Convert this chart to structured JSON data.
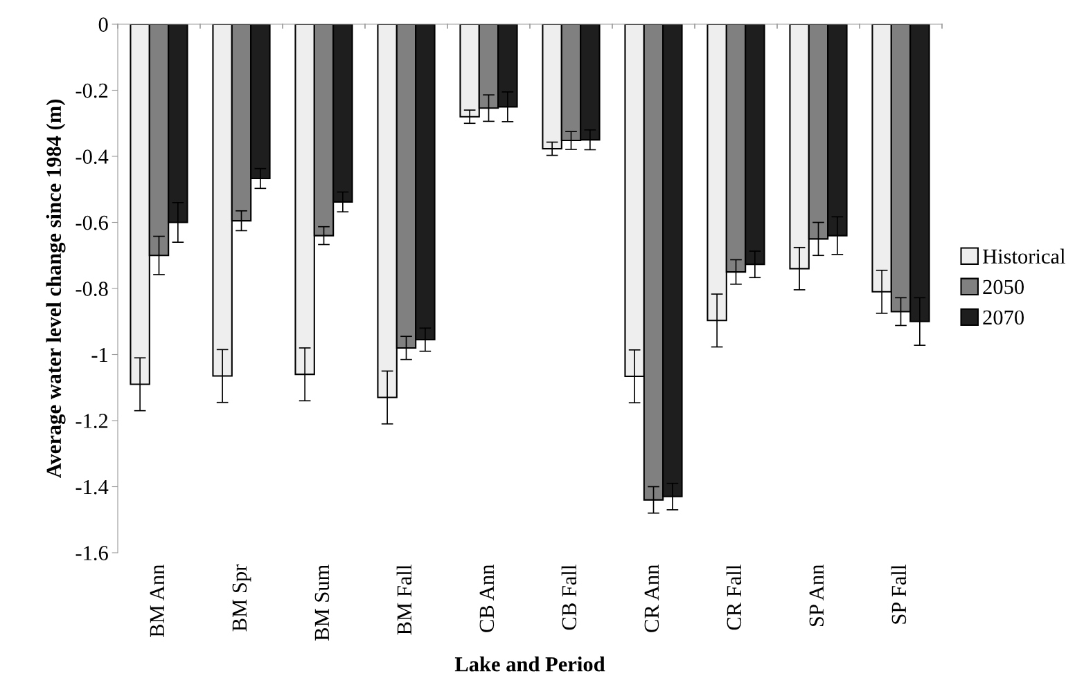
{
  "chart_data": {
    "type": "bar",
    "xlabel": "Lake and Period",
    "ylabel": "Average water level change since 1984 (m)",
    "categories": [
      "BM Ann",
      "BM Spr",
      "BM Sum",
      "BM Fall",
      "CB Ann",
      "CB Fall",
      "CR Ann",
      "CR Fall",
      "SP Ann",
      "SP Fall"
    ],
    "series": [
      {
        "name": "Historical",
        "color": "#eeeeee",
        "values": [
          -1.09,
          -1.065,
          -1.06,
          -1.13,
          -0.28,
          -0.377,
          -1.066,
          -0.897,
          -0.74,
          -0.81
        ],
        "errors": [
          0.08,
          0.08,
          0.08,
          0.08,
          0.02,
          0.02,
          0.08,
          0.08,
          0.064,
          0.065
        ]
      },
      {
        "name": "2050",
        "color": "#808080",
        "values": [
          -0.7,
          -0.595,
          -0.64,
          -0.98,
          -0.254,
          -0.352,
          -1.44,
          -0.75,
          -0.65,
          -0.87
        ],
        "errors": [
          0.058,
          0.03,
          0.027,
          0.035,
          0.04,
          0.027,
          0.04,
          0.037,
          0.05,
          0.042
        ]
      },
      {
        "name": "2070",
        "color": "#1e1e1e",
        "values": [
          -0.6,
          -0.467,
          -0.538,
          -0.955,
          -0.25,
          -0.35,
          -1.43,
          -0.727,
          -0.64,
          -0.9
        ],
        "errors": [
          0.06,
          0.03,
          0.03,
          0.035,
          0.045,
          0.03,
          0.04,
          0.04,
          0.057,
          0.072
        ]
      }
    ],
    "ylim": [
      -1.6,
      0
    ],
    "yticks": [
      0,
      -0.2,
      -0.4,
      -0.6,
      -0.8,
      -1,
      -1.2,
      -1.4,
      -1.6
    ],
    "grid": false,
    "legend": "right"
  }
}
